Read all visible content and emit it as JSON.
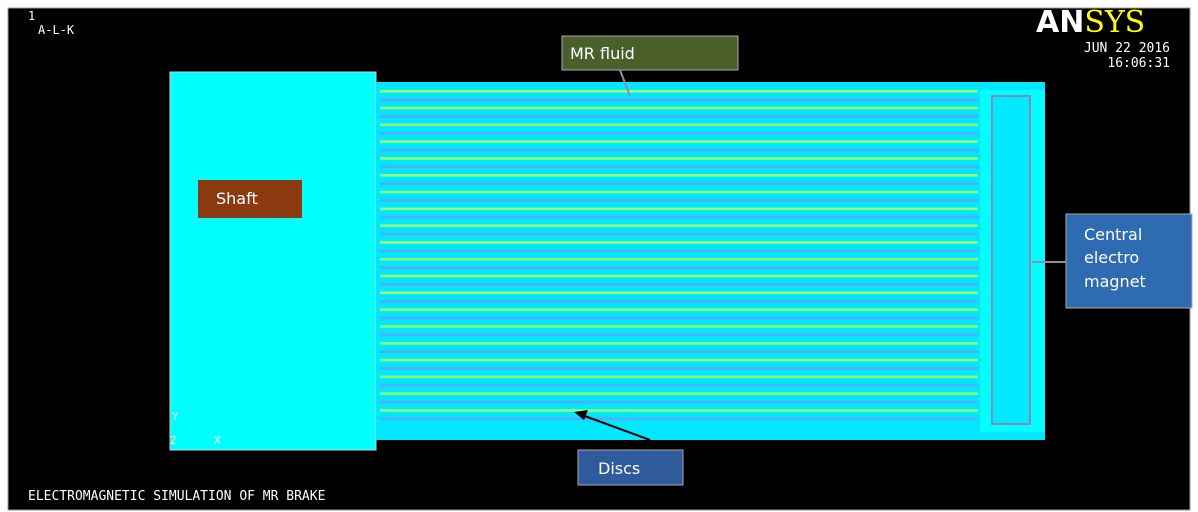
{
  "header": {
    "window_number": "1",
    "plot_name": "A-L-K",
    "logo": {
      "left": "AN",
      "right": "SYS"
    },
    "date": "JUN 22 2016",
    "time": "16:06:31"
  },
  "callouts": {
    "mr_fluid": "MR fluid",
    "shaft": "Shaft",
    "magnet": [
      "Central",
      "electro",
      "magnet"
    ],
    "discs": "Discs"
  },
  "triad": {
    "y": "Y",
    "z": "Z",
    "x": "X"
  },
  "caption": "ELECTROMAGNETIC SIMULATION OF MR BRAKE"
}
